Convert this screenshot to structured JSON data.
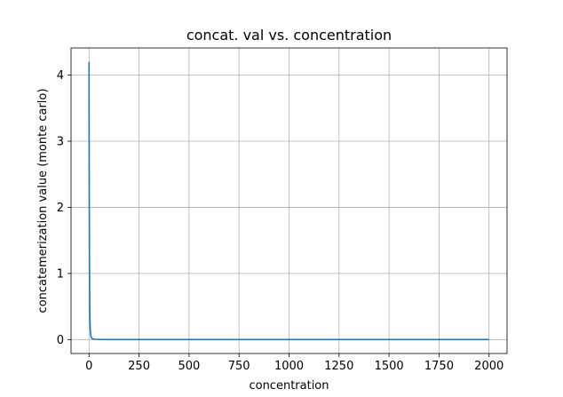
{
  "chart_data": {
    "type": "line",
    "title": "concat. val vs. concentration",
    "xlabel": "concentration",
    "ylabel": "concatemerization value (monte carlo)",
    "xlim": [
      -90,
      2090
    ],
    "ylim": [
      -0.21,
      4.41
    ],
    "x_ticks": [
      0,
      250,
      500,
      750,
      1000,
      1250,
      1500,
      1750,
      2000
    ],
    "x_tick_labels": [
      "0",
      "250",
      "500",
      "750",
      "1000",
      "1250",
      "1500",
      "1750",
      "2000"
    ],
    "y_ticks": [
      0,
      1,
      2,
      3,
      4
    ],
    "y_tick_labels": [
      "0",
      "1",
      "2",
      "3",
      "4"
    ],
    "grid": true,
    "colors": {
      "line": "#1f77b4"
    },
    "series": [
      {
        "x": [
          0.1,
          0.3,
          0.6,
          1,
          1.5,
          2,
          2.5,
          3,
          3.5,
          4,
          5,
          6,
          7,
          8,
          10,
          12,
          15,
          20,
          30,
          50,
          100,
          200,
          500,
          1000,
          1500,
          2000
        ],
        "values": [
          4.2,
          3.6,
          3.0,
          2.4,
          1.8,
          1.35,
          1.0,
          0.75,
          0.55,
          0.42,
          0.26,
          0.17,
          0.12,
          0.08,
          0.045,
          0.03,
          0.018,
          0.01,
          0.005,
          0.002,
          0.001,
          0.0005,
          0.0002,
          0.0001,
          0.0001,
          0.0001
        ]
      }
    ]
  }
}
